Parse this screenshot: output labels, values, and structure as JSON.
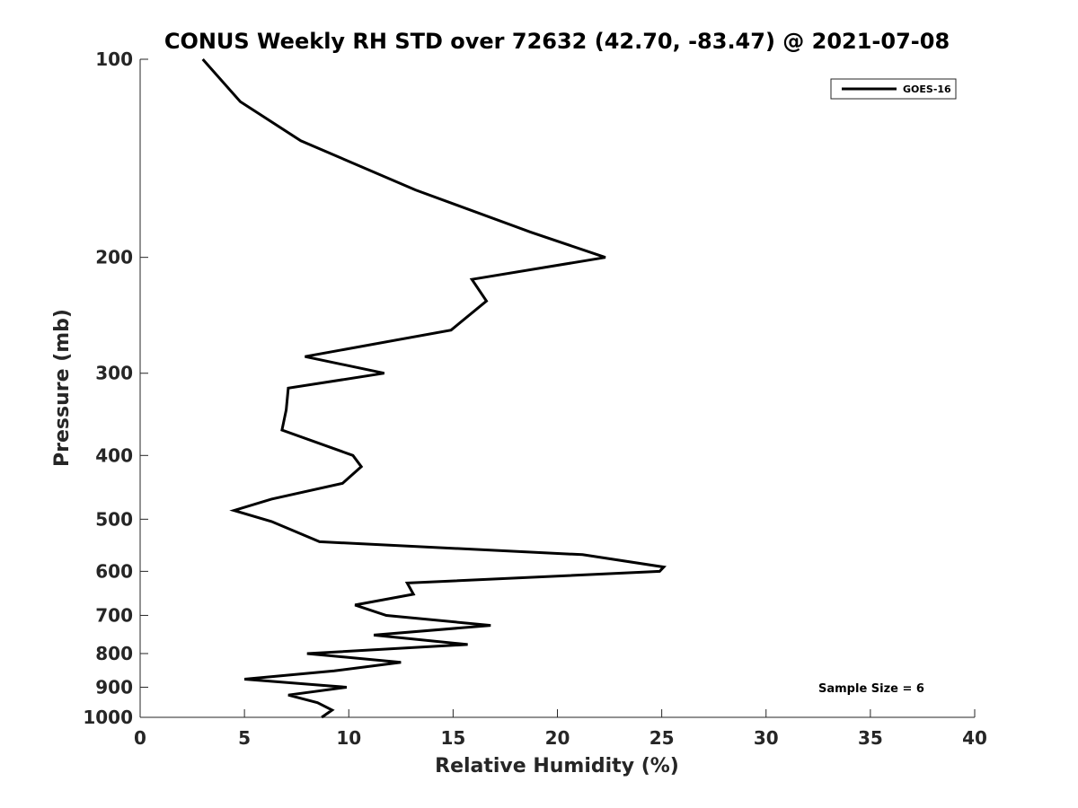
{
  "chart_data": {
    "type": "line",
    "title": "CONUS Weekly RH STD over 72632 (42.70, -83.47) @ 2021-07-08",
    "xlabel": "Relative Humidity (%)",
    "ylabel": "Pressure (mb)",
    "xlim": [
      0,
      40
    ],
    "ylim": [
      100,
      1000
    ],
    "y_scale": "log",
    "y_reversed": true,
    "x_ticks": [
      "0",
      "5",
      "10",
      "15",
      "20",
      "25",
      "30",
      "35",
      "40"
    ],
    "y_ticks": [
      "100",
      "200",
      "300",
      "400",
      "500",
      "600",
      "700",
      "800",
      "900",
      "1000"
    ],
    "grid": false,
    "legend_position": "top-right",
    "series": [
      {
        "name": "GOES-16",
        "color": "#000000",
        "points": [
          {
            "x": 3.0,
            "y": 100
          },
          {
            "x": 4.8,
            "y": 116
          },
          {
            "x": 7.7,
            "y": 133
          },
          {
            "x": 13.2,
            "y": 158
          },
          {
            "x": 18.7,
            "y": 183
          },
          {
            "x": 22.3,
            "y": 200
          },
          {
            "x": 15.9,
            "y": 216
          },
          {
            "x": 16.6,
            "y": 233
          },
          {
            "x": 14.9,
            "y": 258
          },
          {
            "x": 7.9,
            "y": 283
          },
          {
            "x": 11.7,
            "y": 300
          },
          {
            "x": 7.1,
            "y": 316
          },
          {
            "x": 7.0,
            "y": 341
          },
          {
            "x": 6.8,
            "y": 366
          },
          {
            "x": 10.2,
            "y": 400
          },
          {
            "x": 10.6,
            "y": 416
          },
          {
            "x": 9.7,
            "y": 441
          },
          {
            "x": 6.3,
            "y": 466
          },
          {
            "x": 4.5,
            "y": 485
          },
          {
            "x": 6.3,
            "y": 504
          },
          {
            "x": 8.6,
            "y": 541
          },
          {
            "x": 21.2,
            "y": 566
          },
          {
            "x": 25.1,
            "y": 591
          },
          {
            "x": 24.9,
            "y": 600
          },
          {
            "x": 12.8,
            "y": 625
          },
          {
            "x": 13.1,
            "y": 650
          },
          {
            "x": 10.3,
            "y": 675
          },
          {
            "x": 11.8,
            "y": 700
          },
          {
            "x": 16.8,
            "y": 725
          },
          {
            "x": 11.2,
            "y": 750
          },
          {
            "x": 15.7,
            "y": 775
          },
          {
            "x": 8.0,
            "y": 800
          },
          {
            "x": 12.5,
            "y": 825
          },
          {
            "x": 9.3,
            "y": 850
          },
          {
            "x": 5.0,
            "y": 875
          },
          {
            "x": 9.9,
            "y": 900
          },
          {
            "x": 7.1,
            "y": 925
          },
          {
            "x": 8.5,
            "y": 950
          },
          {
            "x": 9.2,
            "y": 975
          },
          {
            "x": 8.7,
            "y": 1000
          }
        ]
      }
    ],
    "annotations": [
      "Sample Size = 6"
    ]
  }
}
